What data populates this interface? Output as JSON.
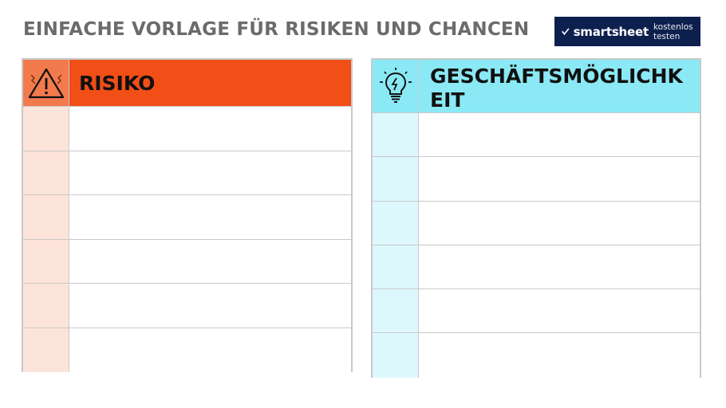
{
  "title": "EINFACHE VORLAGE FÜR RISIKEN UND CHANCEN",
  "logo": {
    "brand": "smartsheet",
    "cta": "kostenlos testen",
    "bg_color": "#0d1f4d"
  },
  "risk": {
    "header": "RISIKO",
    "icon": "warning-triangle-icon",
    "header_color": "#f24e17",
    "rows": [
      "",
      "",
      "",
      "",
      "",
      ""
    ]
  },
  "opportunity": {
    "header": "GESCHÄFTSMÖGLICHKEIT",
    "icon": "lightbulb-icon",
    "header_color": "#8ae9f5",
    "rows": [
      "",
      "",
      "",
      "",
      "",
      ""
    ]
  }
}
